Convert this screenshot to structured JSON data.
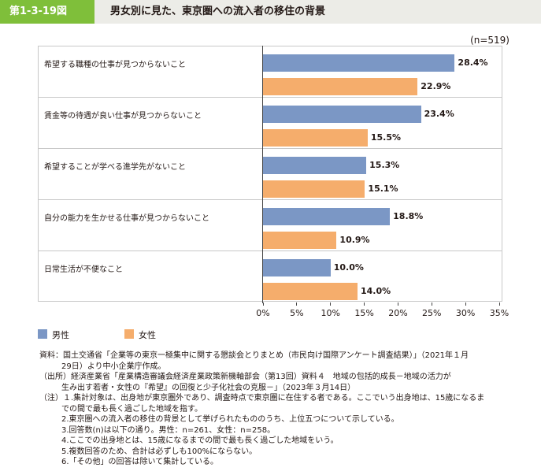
{
  "header": {
    "figure_number": "第1-3-19図",
    "title": "男女別に見た、東京圏への流入者の移住の背景"
  },
  "sample_note": "(n=519)",
  "chart_data": {
    "type": "bar",
    "orientation": "horizontal",
    "categories": [
      "希望する職種の仕事が見つからないこと",
      "賃金等の待遇が良い仕事が見つからないこと",
      "希望することが学べる進学先がないこと",
      "自分の能力を生かせる仕事が見つからないこと",
      "日常生活が不便なこと"
    ],
    "series": [
      {
        "name": "男性",
        "values": [
          28.4,
          23.4,
          15.3,
          18.8,
          10.0
        ],
        "color": "#7b97c5"
      },
      {
        "name": "女性",
        "values": [
          22.9,
          15.5,
          15.1,
          10.9,
          14.0
        ],
        "color": "#f5ad6c"
      }
    ],
    "value_labels": [
      [
        "28.4%",
        "22.9%"
      ],
      [
        "23.4%",
        "15.5%"
      ],
      [
        "15.3%",
        "15.1%"
      ],
      [
        "18.8%",
        "10.9%"
      ],
      [
        "10.0%",
        "14.0%"
      ]
    ],
    "x_ticks": [
      "0%",
      "5%",
      "10%",
      "15%",
      "20%",
      "25%",
      "30%",
      "35%"
    ],
    "xlim": [
      0,
      35
    ],
    "grid": false,
    "legend_position": "bottom-left"
  },
  "notes": [
    "資料：国土交通省「企業等の東京一極集中に関する懇談会とりまとめ（市民向け国際アンケート調査結果）」（2021年１月",
    "29日）より中小企業庁作成。",
    "（出所）経済産業省「産業構造審議会経済産業政策新機軸部会（第13回）資料４　地域の包括的成長－地域の活力が",
    "生み出す若者・女性の『希望』の回復と少子化社会の克服－」（2023年３月14日）",
    "（注）１.集計対象は、出身地が東京圏外であり、調査時点で東京圏に在住する者である。ここでいう出身地は、15歳になるま",
    "での間で最も長く過ごした地域を指す。",
    "2.東京圏への流入者の移住の背景として挙げられたもののうち、上位五つについて示している。",
    "3.回答数(n)は以下の通り。男性：n=261、女性：n=258。",
    "4.ここでの出身地とは、15歳になるまでの間で最も長く過ごした地域をいう。",
    "5.複数回答のため、合計は必ずしも100%にならない。",
    "6.「その他」の回答は除いて集計している。"
  ]
}
